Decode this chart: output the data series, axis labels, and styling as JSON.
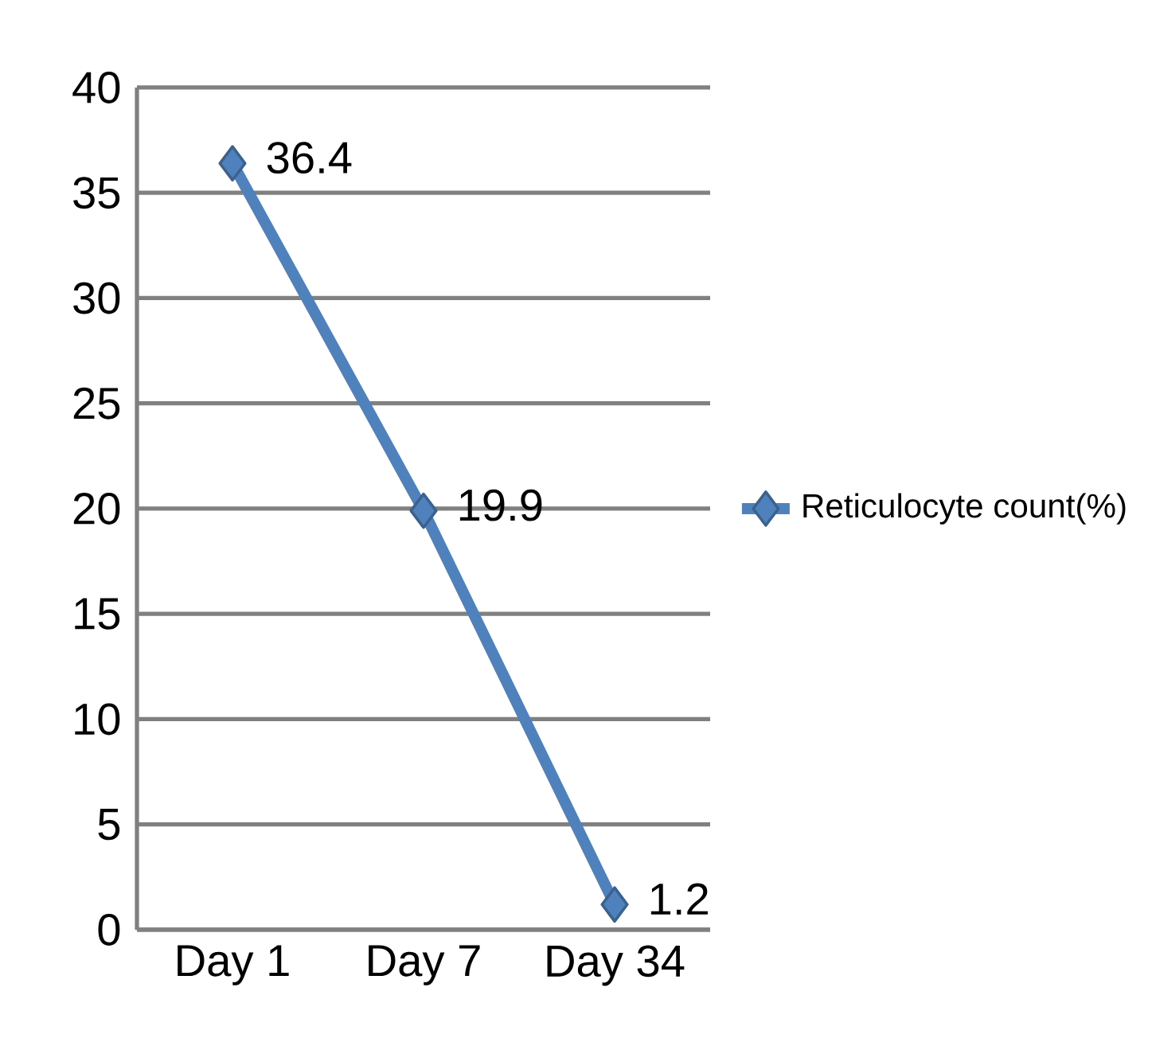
{
  "chart_data": {
    "type": "line",
    "categories": [
      "Day 1",
      "Day 7",
      "Day 34"
    ],
    "series": [
      {
        "name": "Reticulocyte count(%)",
        "color": "#4f81bd",
        "values": [
          36.4,
          19.9,
          1.2
        ]
      }
    ],
    "ylim": [
      0,
      40
    ],
    "yticks": [
      0,
      5,
      10,
      15,
      20,
      25,
      30,
      35,
      40
    ],
    "grid": "y",
    "legend": "right",
    "marker": "diamond",
    "data_labels": true
  }
}
